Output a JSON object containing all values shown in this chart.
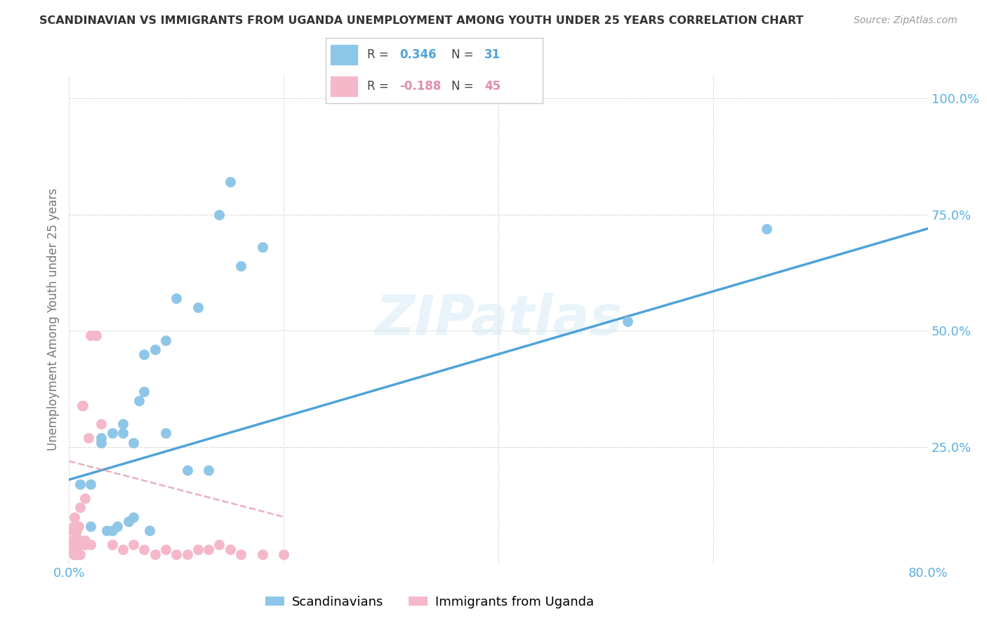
{
  "title": "SCANDINAVIAN VS IMMIGRANTS FROM UGANDA UNEMPLOYMENT AMONG YOUTH UNDER 25 YEARS CORRELATION CHART",
  "source": "Source: ZipAtlas.com",
  "ylabel": "Unemployment Among Youth under 25 years",
  "xlim": [
    0.0,
    0.8
  ],
  "ylim": [
    0.0,
    1.05
  ],
  "xticks": [
    0.0,
    0.2,
    0.4,
    0.6,
    0.8
  ],
  "xticklabels": [
    "0.0%",
    "",
    "",
    "",
    "80.0%"
  ],
  "yticks": [
    0.25,
    0.5,
    0.75,
    1.0
  ],
  "yticklabels": [
    "25.0%",
    "50.0%",
    "75.0%",
    "100.0%"
  ],
  "scandinavian_color": "#8ec6e8",
  "uganda_color": "#f5b8c8",
  "trendline_scan_color": "#4fa3d8",
  "trendline_uganda_color": "#e090a8",
  "background_color": "#ffffff",
  "watermark_text": "ZIPatlas",
  "r_scan": "0.346",
  "n_scan": "31",
  "r_uganda": "-0.188",
  "n_uganda": "45",
  "scandinavian_x": [
    0.01,
    0.02,
    0.02,
    0.03,
    0.03,
    0.035,
    0.04,
    0.04,
    0.045,
    0.05,
    0.05,
    0.055,
    0.06,
    0.06,
    0.065,
    0.07,
    0.07,
    0.075,
    0.08,
    0.09,
    0.09,
    0.1,
    0.11,
    0.12,
    0.13,
    0.14,
    0.15,
    0.16,
    0.18,
    0.52,
    0.65
  ],
  "scandinavian_y": [
    0.17,
    0.17,
    0.08,
    0.26,
    0.27,
    0.07,
    0.28,
    0.07,
    0.08,
    0.3,
    0.28,
    0.09,
    0.26,
    0.1,
    0.35,
    0.45,
    0.37,
    0.07,
    0.46,
    0.48,
    0.28,
    0.57,
    0.2,
    0.55,
    0.2,
    0.75,
    0.82,
    0.64,
    0.68,
    0.52,
    0.72
  ],
  "uganda_x": [
    0.003,
    0.003,
    0.003,
    0.004,
    0.004,
    0.004,
    0.005,
    0.005,
    0.005,
    0.006,
    0.006,
    0.007,
    0.007,
    0.008,
    0.008,
    0.009,
    0.009,
    0.01,
    0.01,
    0.01,
    0.012,
    0.013,
    0.015,
    0.015,
    0.015,
    0.018,
    0.02,
    0.02,
    0.025,
    0.03,
    0.04,
    0.05,
    0.06,
    0.07,
    0.08,
    0.09,
    0.1,
    0.11,
    0.12,
    0.13,
    0.14,
    0.15,
    0.16,
    0.18,
    0.2
  ],
  "uganda_y": [
    0.03,
    0.05,
    0.07,
    0.02,
    0.05,
    0.08,
    0.02,
    0.04,
    0.1,
    0.03,
    0.06,
    0.03,
    0.07,
    0.02,
    0.04,
    0.05,
    0.08,
    0.02,
    0.04,
    0.12,
    0.34,
    0.34,
    0.04,
    0.05,
    0.14,
    0.27,
    0.04,
    0.49,
    0.49,
    0.3,
    0.04,
    0.03,
    0.04,
    0.03,
    0.02,
    0.03,
    0.02,
    0.02,
    0.03,
    0.03,
    0.04,
    0.03,
    0.02,
    0.02,
    0.02
  ],
  "scan_trendline_x": [
    0.0,
    0.8
  ],
  "scan_trendline_y": [
    0.18,
    0.72
  ],
  "uganda_trendline_x": [
    0.0,
    0.2
  ],
  "uganda_trendline_y": [
    0.22,
    0.1
  ]
}
